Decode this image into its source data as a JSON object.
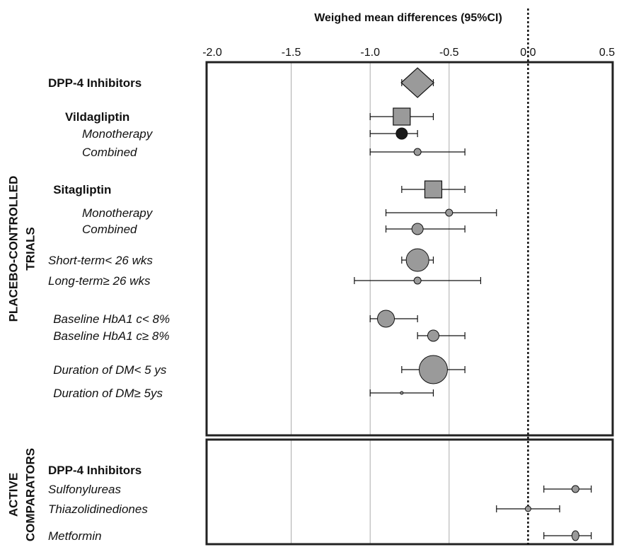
{
  "chart_data": {
    "type": "forest",
    "title": "Weighed mean differences (95%CI)",
    "x_ticks": [
      "-2.0",
      "-1.5",
      "-1.0",
      "-0.5",
      "0.0",
      "0.5"
    ],
    "xlim": [
      -2.0,
      0.5
    ],
    "reference_line": 0.0,
    "grid": true,
    "colors": {
      "marker_fill": "#9a9a9a",
      "marker_fill_dark": "#1a1a1a",
      "frame": "#222222",
      "grid": "#aaaaaa"
    },
    "panels": [
      {
        "label_lines": [
          "PLACEBO-CONTROLLED",
          "TRIALS"
        ],
        "rows": [
          {
            "label": "DPP-4 Inhibitors",
            "style": "bold",
            "indent": 0,
            "estimate": -0.7,
            "ci": [
              -0.8,
              -0.6
            ],
            "marker": "diamond",
            "marker_size": "large"
          },
          {
            "label": "Vildagliptin",
            "style": "bold",
            "indent": 1,
            "estimate": -0.8,
            "ci": [
              -1.0,
              -0.6
            ],
            "marker": "square",
            "marker_size": "medium"
          },
          {
            "label": "Monotherapy",
            "style": "italic",
            "indent": 2,
            "estimate": -0.8,
            "ci": [
              -1.0,
              -0.7
            ],
            "marker": "circle",
            "marker_size": "small",
            "dark": true
          },
          {
            "label": "Combined",
            "style": "italic",
            "indent": 2,
            "estimate": -0.7,
            "ci": [
              -1.0,
              -0.4
            ],
            "marker": "circle",
            "marker_size": "tiny"
          },
          {
            "label": "Sitagliptin",
            "style": "bold",
            "indent": 0.3,
            "estimate": -0.6,
            "ci": [
              -0.8,
              -0.4
            ],
            "marker": "square",
            "marker_size": "medium"
          },
          {
            "label": "Monotherapy",
            "style": "italic",
            "indent": 2,
            "estimate": -0.5,
            "ci": [
              -0.9,
              -0.2
            ],
            "marker": "circle",
            "marker_size": "tiny"
          },
          {
            "label": "Combined",
            "style": "italic",
            "indent": 2,
            "estimate": -0.7,
            "ci": [
              -0.9,
              -0.4
            ],
            "marker": "circle",
            "marker_size": "small"
          },
          {
            "label": "Short-term< 26 wks",
            "style": "italic",
            "indent": 0,
            "estimate": -0.7,
            "ci": [
              -0.8,
              -0.6
            ],
            "marker": "circle",
            "marker_size": "large"
          },
          {
            "label": "Long-term≥ 26 wks",
            "style": "italic",
            "indent": 0,
            "estimate": -0.7,
            "ci": [
              -1.1,
              -0.3
            ],
            "marker": "circle",
            "marker_size": "tiny"
          },
          {
            "label": "Baseline HbA1 c< 8%",
            "style": "italic",
            "indent": 0.3,
            "estimate": -0.9,
            "ci": [
              -1.0,
              -0.7
            ],
            "marker": "circle",
            "marker_size": "medium"
          },
          {
            "label": "Baseline HbA1 c≥ 8%",
            "style": "italic",
            "indent": 0.3,
            "estimate": -0.6,
            "ci": [
              -0.7,
              -0.4
            ],
            "marker": "circle",
            "marker_size": "small"
          },
          {
            "label": "Duration of DM< 5 ys",
            "style": "italic",
            "indent": 0.3,
            "estimate": -0.6,
            "ci": [
              -0.8,
              -0.4
            ],
            "marker": "circle",
            "marker_size": "xlarge"
          },
          {
            "label": "Duration of DM≥ 5ys",
            "style": "italic",
            "indent": 0.3,
            "estimate": -0.8,
            "ci": [
              -1.0,
              -0.6
            ],
            "marker": "circle",
            "marker_size": "dot"
          }
        ]
      },
      {
        "label_lines": [
          "ACTIVE",
          "COMPARATORS"
        ],
        "rows": [
          {
            "label": "DPP-4 Inhibitors",
            "style": "bold",
            "indent": 0,
            "estimate": null,
            "ci": null,
            "marker": "none"
          },
          {
            "label": "Sulfonylureas",
            "style": "italic",
            "indent": 0,
            "estimate": 0.3,
            "ci": [
              0.1,
              0.4
            ],
            "marker": "circle",
            "marker_size": "tiny"
          },
          {
            "label": "Thiazolidinediones",
            "style": "italic",
            "indent": 0,
            "estimate": 0.0,
            "ci": [
              -0.2,
              0.2
            ],
            "marker": "circle",
            "marker_size": "dot2"
          },
          {
            "label": "Metformin",
            "style": "italic",
            "indent": 0,
            "estimate": 0.3,
            "ci": [
              0.1,
              0.4
            ],
            "marker": "ellipse",
            "marker_size": "tiny"
          }
        ]
      }
    ]
  }
}
